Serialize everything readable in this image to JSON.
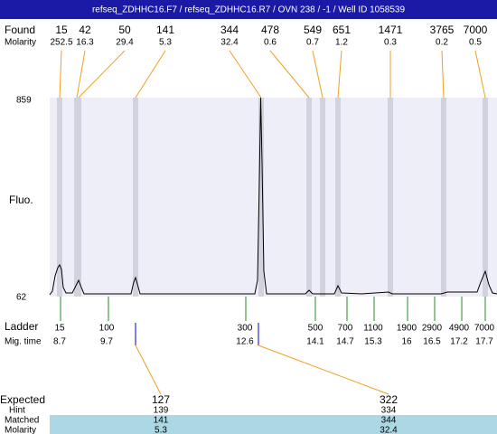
{
  "header": {
    "title": "refseq_ZDHHC16.F7 / refseq_ZDHHC16.R7 / OVN 238 / -1 / Well ID 1058539"
  },
  "found": {
    "label": "Found",
    "molarity_label": "Molarity",
    "sizes": [
      15,
      42,
      50,
      141,
      344,
      478,
      549,
      651,
      1471,
      3765,
      7000
    ],
    "molarity": [
      252.5,
      16.3,
      29.4,
      5.3,
      32.4,
      0.6,
      0.7,
      1.2,
      0.3,
      0.2,
      0.5
    ]
  },
  "axis": {
    "label": "Fluo.",
    "max": 859,
    "min": 62
  },
  "ladder": {
    "label": "Ladder",
    "time_label": "Mig. time",
    "sizes": [
      15,
      100,
      300,
      500,
      700,
      1100,
      1900,
      2900,
      4900,
      7000
    ],
    "times": [
      8.7,
      9.7,
      12.6,
      14.1,
      14.7,
      15.3,
      16,
      16.5,
      17.2,
      17.7
    ]
  },
  "expected": {
    "label": "Expected",
    "hint_label": "Hint",
    "matched_label": "Matched",
    "molarity_label": "Molarity",
    "expected": [
      127,
      322
    ],
    "hint": [
      139,
      334
    ],
    "matched": [
      141,
      344
    ],
    "molarity": [
      5.3,
      32.4
    ]
  }
}
